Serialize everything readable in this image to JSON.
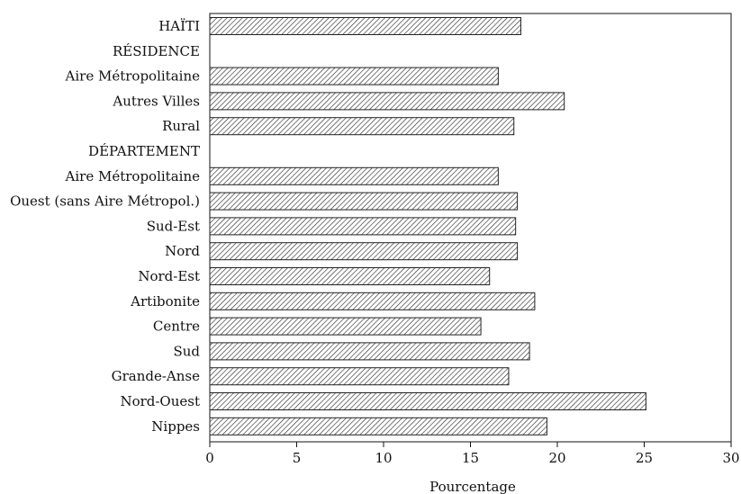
{
  "chart_data": {
    "type": "bar",
    "orientation": "horizontal",
    "categories": [
      "HAÏTI",
      "RÉSIDENCE",
      "Aire Métropolitaine",
      "Autres Villes",
      "Rural",
      "DÉPARTEMENT",
      "Aire Métropolitaine",
      "Ouest (sans Aire Métropol.)",
      "Sud-Est",
      "Nord",
      "Nord-Est",
      "Artibonite",
      "Centre",
      "Sud",
      "Grande-Anse",
      "Nord-Ouest",
      "Nippes"
    ],
    "values": [
      17.9,
      null,
      16.6,
      20.4,
      17.5,
      null,
      16.6,
      17.7,
      17.6,
      17.7,
      16.1,
      18.7,
      15.6,
      18.4,
      17.2,
      25.1,
      19.4
    ],
    "xlabel": "Pourcentage",
    "ylabel": "",
    "xlim": [
      0,
      30
    ],
    "xticks": [
      0,
      5,
      10,
      15,
      20,
      25,
      30
    ],
    "grid": false,
    "bar_fill": "diagonal-hatch",
    "bar_color": "#222222"
  }
}
